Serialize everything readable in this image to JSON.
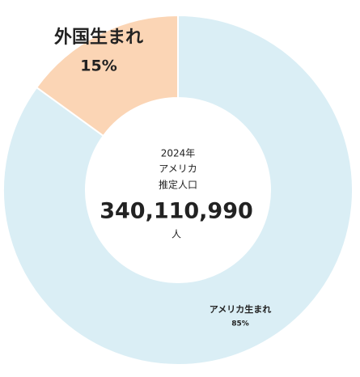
{
  "chart_data": {
    "type": "donut",
    "categories": [
      "アメリカ生まれ",
      "外国生まれ"
    ],
    "values": [
      85,
      15
    ],
    "value_labels": [
      "85%",
      "15%"
    ],
    "colors": [
      "#daeef5",
      "#fbd5b5"
    ],
    "center_text": [
      "2024年",
      "アメリカ",
      "推定人口"
    ],
    "center_value": "340,110,990",
    "center_unit": "人"
  }
}
